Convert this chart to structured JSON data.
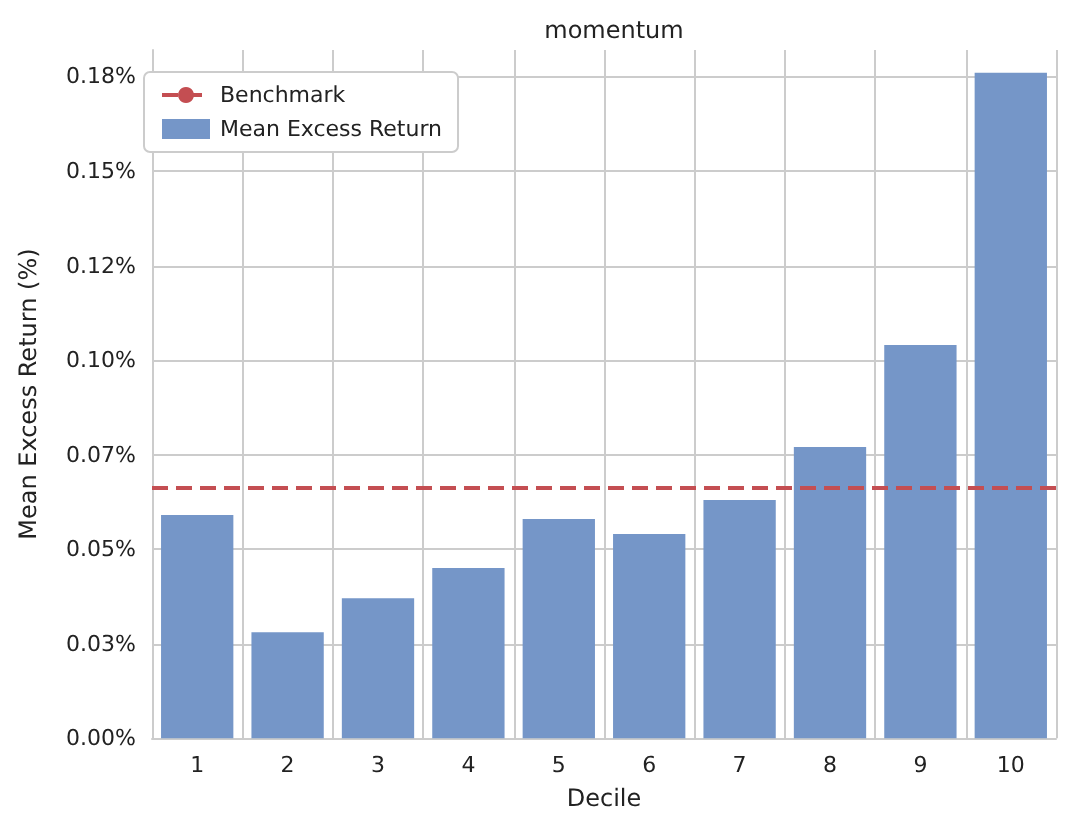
{
  "chart_data": {
    "type": "bar",
    "title": "momentum",
    "xlabel": "Decile",
    "ylabel": "Mean Excess Return (%)",
    "categories": [
      "1",
      "2",
      "3",
      "4",
      "5",
      "6",
      "7",
      "8",
      "9",
      "10"
    ],
    "series": [
      {
        "name": "Mean Excess Return",
        "color": "#7596c8",
        "values": [
          0.059,
          0.028,
          0.037,
          0.045,
          0.058,
          0.054,
          0.063,
          0.077,
          0.104,
          0.176
        ]
      }
    ],
    "ref_lines": [
      {
        "axis": "y",
        "value": 0.0665,
        "label": "Benchmark",
        "color": "#c44e52",
        "line_style": "dashed"
      }
    ],
    "ylim": [
      0,
      0.182
    ],
    "yticks": [
      {
        "value": 0,
        "label": "0.00%"
      },
      {
        "value": 0.025,
        "label": "0.03%"
      },
      {
        "value": 0.05,
        "label": "0.05%"
      },
      {
        "value": 0.075,
        "label": "0.07%"
      },
      {
        "value": 0.1,
        "label": "0.10%"
      },
      {
        "value": 0.125,
        "label": "0.12%"
      },
      {
        "value": 0.15,
        "label": "0.15%"
      },
      {
        "value": 0.175,
        "label": "0.18%"
      }
    ],
    "grid": true,
    "legend": "top left"
  }
}
